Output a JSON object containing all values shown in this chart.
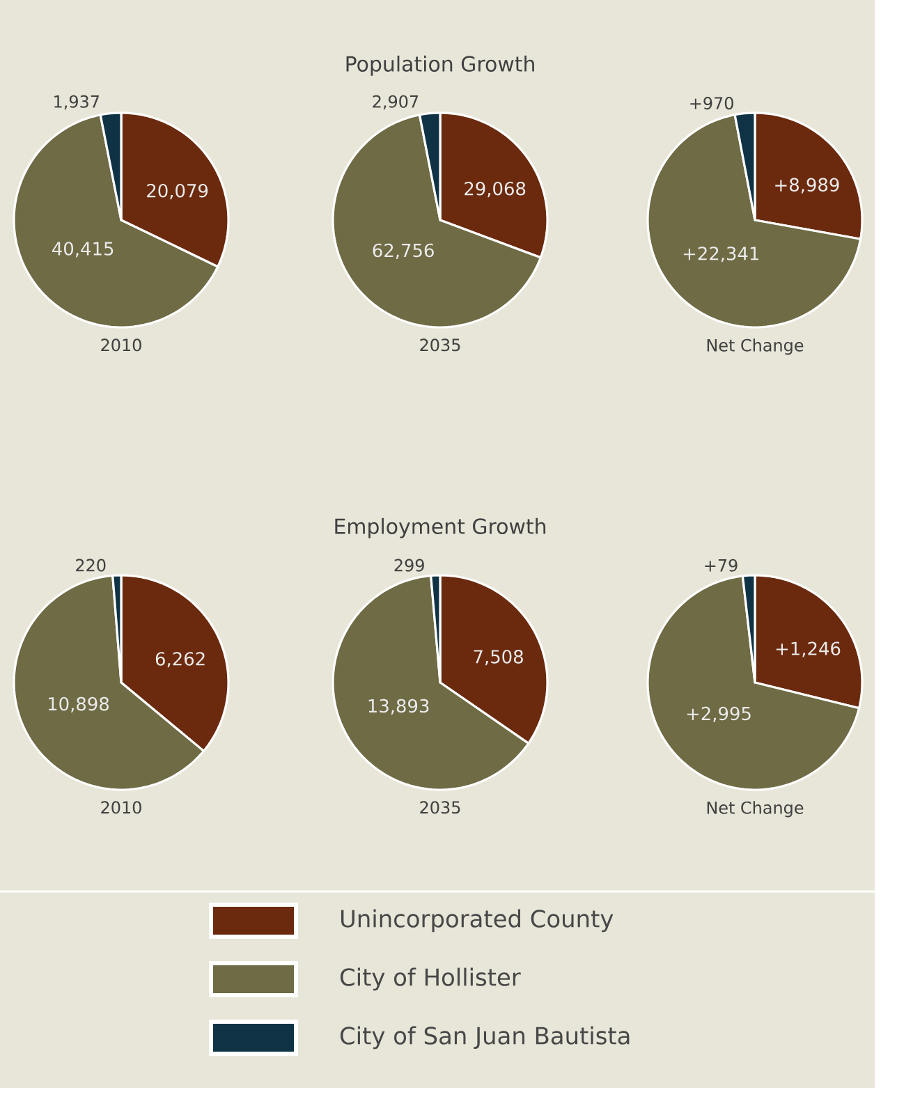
{
  "chart_data": [
    {
      "type": "pie",
      "xlabel": "2010",
      "values": [
        20079,
        40415,
        1937
      ],
      "value_labels": [
        "20,079",
        "40,415",
        "1,937"
      ],
      "colors": [
        "#6b2a0e",
        "#6e6b45",
        "#0f3345"
      ]
    },
    {
      "type": "pie",
      "title": "Population Growth",
      "xlabel": "2035",
      "values": [
        29068,
        62756,
        2907
      ],
      "value_labels": [
        "29,068",
        "62,756",
        "2,907"
      ],
      "colors": [
        "#6b2a0e",
        "#6e6b45",
        "#0f3345"
      ]
    },
    {
      "type": "pie",
      "xlabel": "Net Change",
      "values": [
        8989,
        22341,
        970
      ],
      "value_labels": [
        "+8,989",
        "+22,341",
        "+970"
      ],
      "colors": [
        "#6b2a0e",
        "#6e6b45",
        "#0f3345"
      ]
    },
    {
      "type": "pie",
      "xlabel": "2010",
      "values": [
        6262,
        10898,
        220
      ],
      "value_labels": [
        "6,262",
        "10,898",
        "220"
      ],
      "colors": [
        "#6b2a0e",
        "#6e6b45",
        "#0f3345"
      ]
    },
    {
      "type": "pie",
      "title": "Employment Growth",
      "xlabel": "2035",
      "values": [
        7508,
        13893,
        299
      ],
      "value_labels": [
        "7,508",
        "13,893",
        "299"
      ],
      "colors": [
        "#6b2a0e",
        "#6e6b45",
        "#0f3345"
      ]
    },
    {
      "type": "pie",
      "xlabel": "Net Change",
      "categories": [
        "Unincorporated County",
        "City of Hollister",
        "City of San Juan Bautista"
      ],
      "values": [
        1246,
        2995,
        79
      ],
      "value_labels": [
        "+1,246",
        "+2,995",
        "+79"
      ],
      "colors": [
        "#6b2a0e",
        "#6e6b45",
        "#0f3345"
      ],
      "legend": "bottom"
    }
  ]
}
